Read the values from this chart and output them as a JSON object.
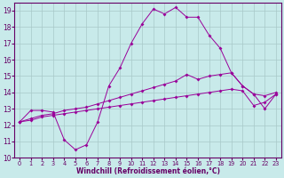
{
  "title": "",
  "xlabel": "Windchill (Refroidissement éolien,°C)",
  "ylabel": "",
  "bg_color": "#c8eaea",
  "grid_color": "#a8c8c8",
  "line_color": "#990099",
  "xlim": [
    -0.5,
    23.5
  ],
  "ylim": [
    10,
    19.5
  ],
  "yticks": [
    10,
    11,
    12,
    13,
    14,
    15,
    16,
    17,
    18,
    19
  ],
  "xticks": [
    0,
    1,
    2,
    3,
    4,
    5,
    6,
    7,
    8,
    9,
    10,
    11,
    12,
    13,
    14,
    15,
    16,
    17,
    18,
    19,
    20,
    21,
    22,
    23
  ],
  "line1_x": [
    0,
    1,
    2,
    3,
    4,
    5,
    6,
    7,
    8,
    9,
    10,
    11,
    12,
    13,
    14,
    15,
    16,
    17,
    18,
    19,
    20,
    21,
    22,
    23
  ],
  "line1_y": [
    12.2,
    12.9,
    12.9,
    12.8,
    11.1,
    10.5,
    10.8,
    12.2,
    14.4,
    15.5,
    17.0,
    18.2,
    19.1,
    18.8,
    19.2,
    18.6,
    18.6,
    17.5,
    16.7,
    15.2,
    14.4,
    13.9,
    13.0,
    13.9
  ],
  "line2_x": [
    0,
    1,
    2,
    3,
    4,
    5,
    6,
    7,
    8,
    9,
    10,
    11,
    12,
    13,
    14,
    15,
    16,
    17,
    18,
    19,
    20,
    21,
    22,
    23
  ],
  "line2_y": [
    12.2,
    12.4,
    12.6,
    12.7,
    12.9,
    13.0,
    13.1,
    13.3,
    13.5,
    13.7,
    13.9,
    14.1,
    14.3,
    14.5,
    14.7,
    15.1,
    14.8,
    15.0,
    15.1,
    15.2,
    14.4,
    13.9,
    13.8,
    14.0
  ],
  "line3_x": [
    0,
    1,
    2,
    3,
    4,
    5,
    6,
    7,
    8,
    9,
    10,
    11,
    12,
    13,
    14,
    15,
    16,
    17,
    18,
    19,
    20,
    21,
    22,
    23
  ],
  "line3_y": [
    12.2,
    12.3,
    12.5,
    12.6,
    12.7,
    12.8,
    12.9,
    13.0,
    13.1,
    13.2,
    13.3,
    13.4,
    13.5,
    13.6,
    13.7,
    13.8,
    13.9,
    14.0,
    14.1,
    14.2,
    14.1,
    13.2,
    13.4,
    13.9
  ],
  "spine_color": "#660066",
  "tick_color": "#660066",
  "xlabel_fontsize": 5.5,
  "ytick_fontsize": 5.5,
  "xtick_fontsize": 4.8,
  "linewidth": 0.7,
  "markersize": 2.0
}
